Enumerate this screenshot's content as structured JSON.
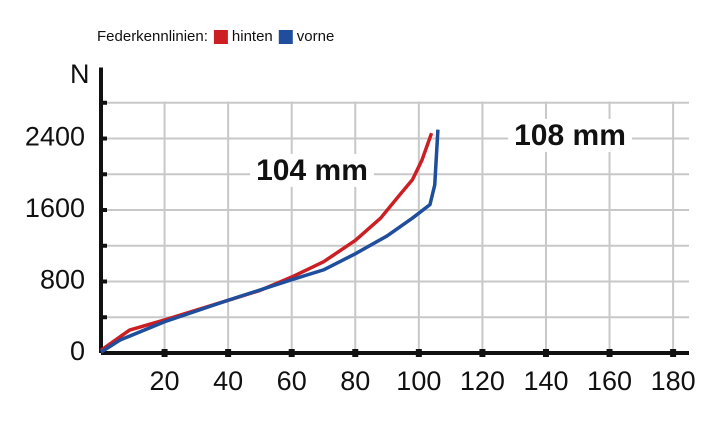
{
  "chart_data": {
    "type": "line",
    "legend_title": "Federkennlinien:",
    "y_label": "N",
    "annotations": [
      "104 mm",
      "108 mm"
    ],
    "series": [
      {
        "name": "hinten",
        "color": "#cc1f24",
        "x": [
          0,
          9,
          20,
          40,
          50,
          60,
          70,
          80,
          88,
          94,
          98,
          101,
          104
        ],
        "values": [
          30,
          257,
          370,
          590,
          700,
          850,
          1020,
          1260,
          1510,
          1770,
          1940,
          2160,
          2460
        ]
      },
      {
        "name": "vorne",
        "color": "#1f4e9c",
        "x": [
          0,
          6,
          20,
          40,
          60,
          70,
          80,
          90,
          98,
          103.5,
          105,
          106
        ],
        "values": [
          10,
          145,
          350,
          590,
          820,
          930,
          1110,
          1310,
          1510,
          1660,
          1880,
          2500
        ]
      }
    ],
    "xlim": [
      0,
      185
    ],
    "ylim": [
      0,
      3150
    ],
    "xticks": [
      20,
      40,
      60,
      80,
      100,
      120,
      140,
      160,
      180
    ],
    "yticks": [
      0,
      800,
      1600,
      2400
    ],
    "minor_yticks": [
      400,
      1200,
      2000,
      2800
    ],
    "grid": true
  }
}
